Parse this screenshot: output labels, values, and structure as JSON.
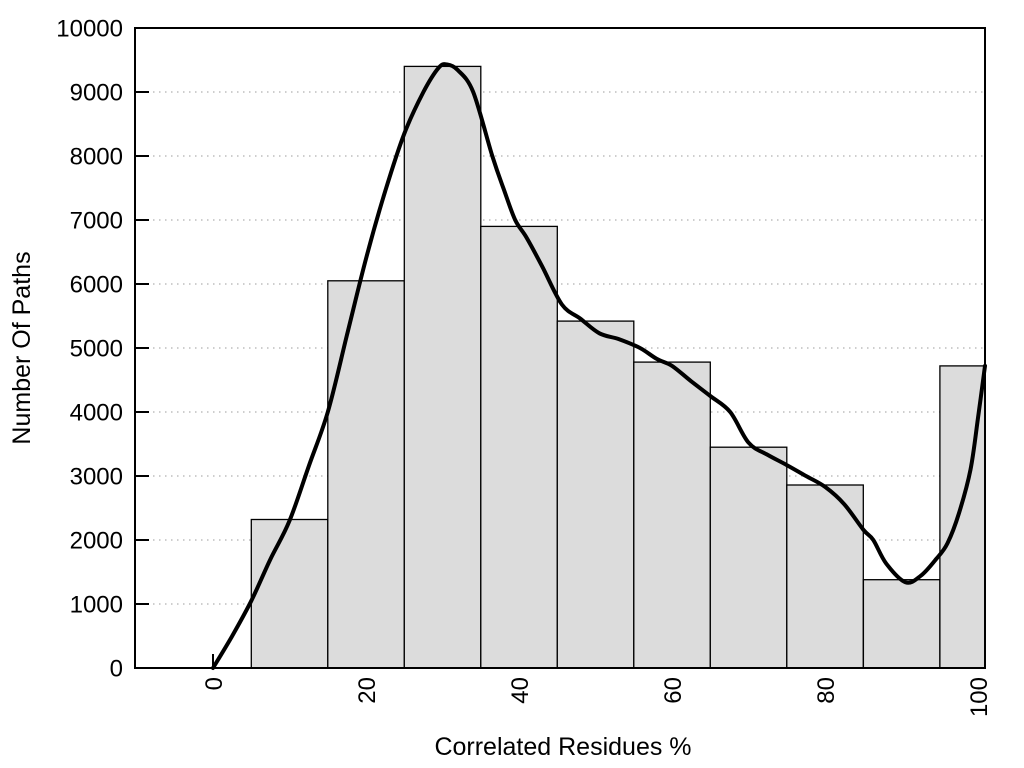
{
  "chart_data": {
    "type": "bar",
    "subtype": "histogram-with-smoothed-curve",
    "title": "",
    "xlabel": "Correlated Residues %",
    "ylabel": "Number Of Paths",
    "xlim": [
      -10.2,
      100.9
    ],
    "ylim": [
      0,
      10000
    ],
    "x_ticks": [
      0,
      20,
      40,
      60,
      80,
      100
    ],
    "y_ticks": [
      0,
      1000,
      2000,
      3000,
      4000,
      5000,
      6000,
      7000,
      8000,
      9000,
      10000
    ],
    "grid": "horizontal-dotted",
    "legend_position": "none",
    "bin_edges": [
      5,
      15,
      25,
      35,
      45,
      55,
      65,
      75,
      85,
      95,
      105
    ],
    "categories": [
      "5-15",
      "15-25",
      "25-35",
      "35-45",
      "45-55",
      "55-65",
      "65-75",
      "75-85",
      "85-95",
      "95-105"
    ],
    "values": [
      2320,
      6050,
      9400,
      6900,
      5420,
      4780,
      3450,
      2860,
      1380,
      4720
    ],
    "series": [
      {
        "name": "smoothed-fit-curve",
        "type": "line",
        "points": [
          [
            0,
            0
          ],
          [
            2.5,
            500
          ],
          [
            5,
            1050
          ],
          [
            7.5,
            1700
          ],
          [
            10,
            2300
          ],
          [
            12.5,
            3150
          ],
          [
            15,
            4000
          ],
          [
            17.5,
            5200
          ],
          [
            20,
            6400
          ],
          [
            22.5,
            7450
          ],
          [
            25,
            8350
          ],
          [
            27.5,
            9000
          ],
          [
            29.5,
            9380
          ],
          [
            30.6,
            9430
          ],
          [
            32,
            9340
          ],
          [
            34,
            9000
          ],
          [
            36.5,
            8000
          ],
          [
            38,
            7480
          ],
          [
            39.5,
            7000
          ],
          [
            41,
            6720
          ],
          [
            43,
            6280
          ],
          [
            45.6,
            5680
          ],
          [
            48,
            5460
          ],
          [
            50.5,
            5230
          ],
          [
            53,
            5140
          ],
          [
            55.8,
            5000
          ],
          [
            58,
            4830
          ],
          [
            60,
            4720
          ],
          [
            62.5,
            4480
          ],
          [
            65,
            4250
          ],
          [
            67.6,
            4000
          ],
          [
            70,
            3520
          ],
          [
            72.5,
            3330
          ],
          [
            75,
            3170
          ],
          [
            77.5,
            3000
          ],
          [
            80,
            2830
          ],
          [
            82.5,
            2560
          ],
          [
            85,
            2160
          ],
          [
            86.3,
            2000
          ],
          [
            88,
            1630
          ],
          [
            90.5,
            1340
          ],
          [
            92.5,
            1440
          ],
          [
            94.5,
            1700
          ],
          [
            96,
            1950
          ],
          [
            97.5,
            2420
          ],
          [
            99,
            3100
          ],
          [
            100,
            3920
          ],
          [
            100.9,
            4720
          ]
        ]
      }
    ],
    "colors": {
      "background": "#ffffff",
      "bar_fill": "#dcdcdc",
      "bar_border": "#000000",
      "curve": "#000000",
      "grid": "#b0b0b0",
      "axis": "#000000",
      "text": "#000000"
    }
  }
}
